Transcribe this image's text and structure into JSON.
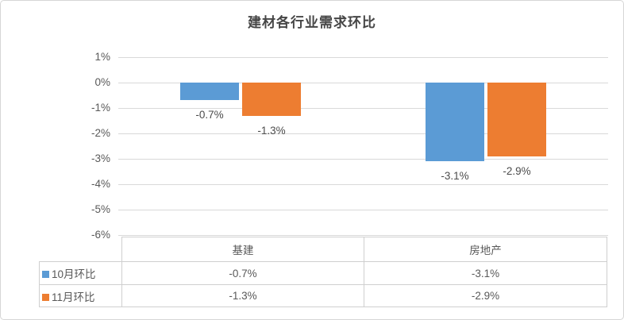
{
  "chart_data": {
    "type": "bar",
    "title": "建材各行业需求环比",
    "categories": [
      "基建",
      "房地产"
    ],
    "series": [
      {
        "name": "10月环比",
        "color": "#5B9BD5",
        "values": [
          -0.7,
          -3.1
        ],
        "labels": [
          "-0.7%",
          "-3.1%"
        ]
      },
      {
        "name": "11月环比",
        "color": "#ED7D31",
        "values": [
          -1.3,
          -2.9
        ],
        "labels": [
          "-1.3%",
          "-2.9%"
        ]
      }
    ],
    "y_axis": {
      "unit": "%",
      "max": 1,
      "min": -6,
      "ticks": [
        "1%",
        "0%",
        "-1%",
        "-2%",
        "-3%",
        "-4%",
        "-5%",
        "-6%"
      ]
    },
    "grid": true,
    "legend_position": "data-table-left",
    "data_table_shown": true,
    "colors": {
      "series1": "#5B9BD5",
      "series2": "#ED7D31",
      "gridline": "#d9d9d9",
      "axis_text": "#595959",
      "title_text": "#464646",
      "table_border": "#cfcfcf"
    }
  }
}
